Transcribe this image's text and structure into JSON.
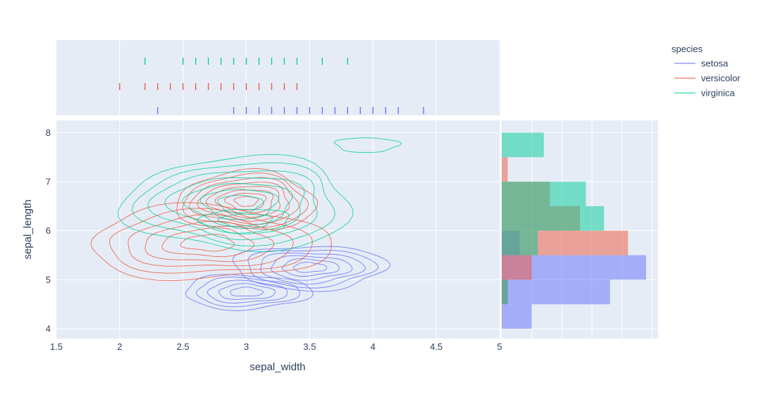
{
  "chart_data": {
    "type": "density_contour_with_marginals",
    "title": "",
    "x": {
      "label": "sepal_width",
      "range": [
        1.5,
        5
      ],
      "ticks": [
        1.5,
        2,
        2.5,
        3,
        3.5,
        4,
        4.5,
        5
      ],
      "tick_labels": [
        "1.5",
        "2",
        "2.5",
        "3",
        "3.5",
        "4",
        "4.5",
        "5"
      ]
    },
    "y": {
      "label": "sepal_length",
      "range": [
        3.8,
        8.25
      ],
      "ticks": [
        4,
        5,
        6,
        7,
        8
      ],
      "tick_labels": [
        "4",
        "5",
        "6",
        "7",
        "8"
      ]
    },
    "legend": {
      "title": "species",
      "position": "top-right",
      "entries": [
        "setosa",
        "versicolor",
        "virginica"
      ]
    },
    "colors": {
      "setosa": "#636efa",
      "versicolor": "#ef553b",
      "virginica": "#00cc96"
    },
    "series": [
      {
        "name": "setosa",
        "color": "#636efa",
        "contour_centers": [
          {
            "x": 3.5,
            "y": 5.25,
            "rx": 0.6,
            "ry": 0.45,
            "levels": 6
          },
          {
            "x": 3.0,
            "y": 4.75,
            "rx": 0.5,
            "ry": 0.35,
            "levels": 5
          }
        ],
        "rug_x": [
          2.3,
          2.9,
          3.0,
          3.1,
          3.2,
          3.3,
          3.4,
          3.5,
          3.6,
          3.7,
          3.8,
          3.9,
          4.0,
          4.1,
          4.2,
          4.4
        ],
        "histogram": [
          {
            "y0": 4.0,
            "y1": 4.5,
            "count": 5
          },
          {
            "y0": 4.5,
            "y1": 5.0,
            "count": 18
          },
          {
            "y0": 5.0,
            "y1": 5.5,
            "count": 24
          },
          {
            "y0": 5.5,
            "y1": 6.0,
            "count": 3
          }
        ]
      },
      {
        "name": "versicolor",
        "color": "#ef553b",
        "contour_centers": [
          {
            "x": 2.7,
            "y": 5.75,
            "rx": 0.95,
            "ry": 0.75,
            "levels": 6
          },
          {
            "x": 3.0,
            "y": 6.6,
            "rx": 0.55,
            "ry": 0.6,
            "levels": 8
          }
        ],
        "rug_x": [
          2.0,
          2.2,
          2.3,
          2.4,
          2.5,
          2.6,
          2.7,
          2.8,
          2.9,
          3.0,
          3.1,
          3.2,
          3.3,
          3.4
        ],
        "histogram": [
          {
            "y0": 4.5,
            "y1": 5.0,
            "count": 1
          },
          {
            "y0": 5.0,
            "y1": 5.5,
            "count": 5
          },
          {
            "y0": 5.5,
            "y1": 6.0,
            "count": 21
          },
          {
            "y0": 6.0,
            "y1": 6.5,
            "count": 13
          },
          {
            "y0": 6.5,
            "y1": 7.0,
            "count": 8
          },
          {
            "y0": 7.0,
            "y1": 7.5,
            "count": 1
          }
        ]
      },
      {
        "name": "virginica",
        "color": "#00cc96",
        "contour_centers": [
          {
            "x": 2.95,
            "y": 6.55,
            "rx": 0.9,
            "ry": 0.95,
            "levels": 7
          },
          {
            "x": 3.0,
            "y": 6.2,
            "rx": 0.35,
            "ry": 0.25,
            "levels": 2
          },
          {
            "x": 3.95,
            "y": 7.75,
            "rx": 0.25,
            "ry": 0.15,
            "levels": 1
          }
        ],
        "rug_x": [
          2.2,
          2.5,
          2.6,
          2.7,
          2.8,
          2.9,
          3.0,
          3.1,
          3.2,
          3.3,
          3.4,
          3.6,
          3.8
        ],
        "histogram": [
          {
            "y0": 4.5,
            "y1": 5.0,
            "count": 1
          },
          {
            "y0": 5.5,
            "y1": 6.0,
            "count": 6
          },
          {
            "y0": 6.0,
            "y1": 6.5,
            "count": 17
          },
          {
            "y0": 6.5,
            "y1": 7.0,
            "count": 14
          },
          {
            "y0": 7.5,
            "y1": 8.0,
            "count": 7
          }
        ]
      }
    ],
    "hist_x_range": [
      0,
      26
    ]
  }
}
